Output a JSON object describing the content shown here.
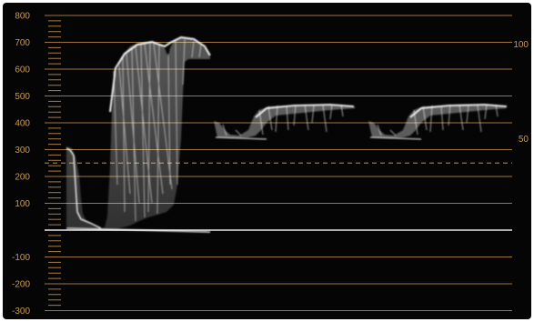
{
  "scope": {
    "type": "parade waveform",
    "channels": 3,
    "left_scale": [
      "800",
      "700",
      "600",
      "500",
      "400",
      "300",
      "200",
      "100",
      "",
      "-100",
      "-200",
      "-300"
    ],
    "right_scale": {
      "top": "100",
      "mid": "50"
    },
    "colors": {
      "background": "#050505",
      "graticule": "#9a7540",
      "labels": "#c99a55",
      "trace": "#ffffff"
    }
  }
}
